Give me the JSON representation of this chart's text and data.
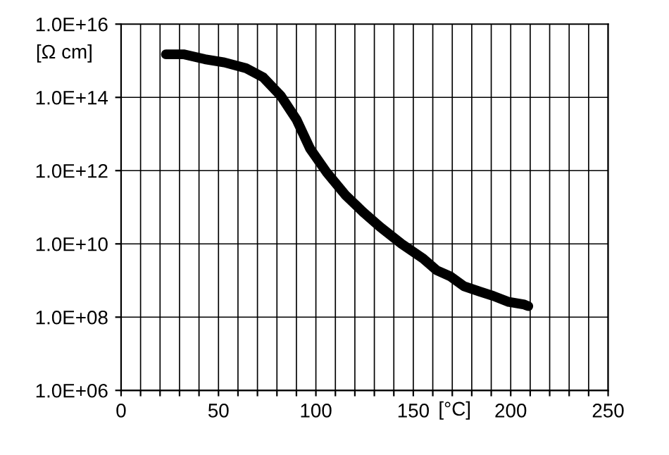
{
  "chart_data": {
    "type": "line",
    "xlabel": "[°C]",
    "ylabel": "[Ω cm]",
    "log": "y",
    "x": [
      23,
      32,
      43,
      53,
      64,
      73,
      82,
      90,
      97,
      105.5,
      115,
      124,
      133,
      144,
      155,
      162,
      169,
      176,
      184,
      191,
      199,
      207,
      209
    ],
    "series": [
      {
        "color": "#000000",
        "values": [
          1500000000000000.0,
          1500000000000000.0,
          1100000000000000.0,
          900000000000000.0,
          630000000000000.0,
          350000000000000.0,
          110000000000000.0,
          25000000000000.0,
          4000000000000.0,
          900000000000.0,
          220000000000.0,
          76000000000.0,
          29000000000.0,
          10000000000.0,
          4000000000.0,
          1900000000.0,
          1300000000.0,
          700000000.0,
          500000000.0,
          380000000.0,
          260000000.0,
          220000000.0,
          200000000.0
        ]
      }
    ],
    "xlim": [
      0,
      250
    ],
    "xticks": [
      0,
      {
        "value": 10,
        "label": null
      },
      {
        "value": 20,
        "label": null
      },
      {
        "value": 30,
        "label": null
      },
      {
        "value": 40,
        "label": null
      },
      50,
      {
        "value": 60,
        "label": null
      },
      {
        "value": 70,
        "label": null
      },
      {
        "value": 80,
        "label": null
      },
      {
        "value": 90,
        "label": null
      },
      100,
      {
        "value": 110,
        "label": null
      },
      {
        "value": 120,
        "label": null
      },
      {
        "value": 130,
        "label": null
      },
      {
        "value": 140,
        "label": null
      },
      150,
      {
        "value": 160,
        "label": null
      },
      {
        "value": 170,
        "label": null
      },
      {
        "value": 180,
        "label": null
      },
      {
        "value": 190,
        "label": null
      },
      200,
      {
        "value": 210,
        "label": null
      },
      {
        "value": 220,
        "label": null
      },
      {
        "value": 230,
        "label": null
      },
      {
        "value": 240,
        "label": null
      },
      250
    ],
    "ylim": [
      1000000.0,
      1e+16
    ],
    "yticks": [
      {
        "value": 1000000.0,
        "label": "1.0E+06"
      },
      {
        "value": 100000000.0,
        "label": "1.0E+08"
      },
      {
        "value": 10000000000.0,
        "label": "1.0E+10"
      },
      {
        "value": 1000000000000.0,
        "label": "1.0E+12"
      },
      {
        "value": 100000000000000.0,
        "label": "1.0E+14"
      },
      {
        "value": 1e+16,
        "label": "1.0E+16"
      }
    ],
    "grid": true,
    "marker": "none",
    "line_style": "solid",
    "legend": false
  }
}
